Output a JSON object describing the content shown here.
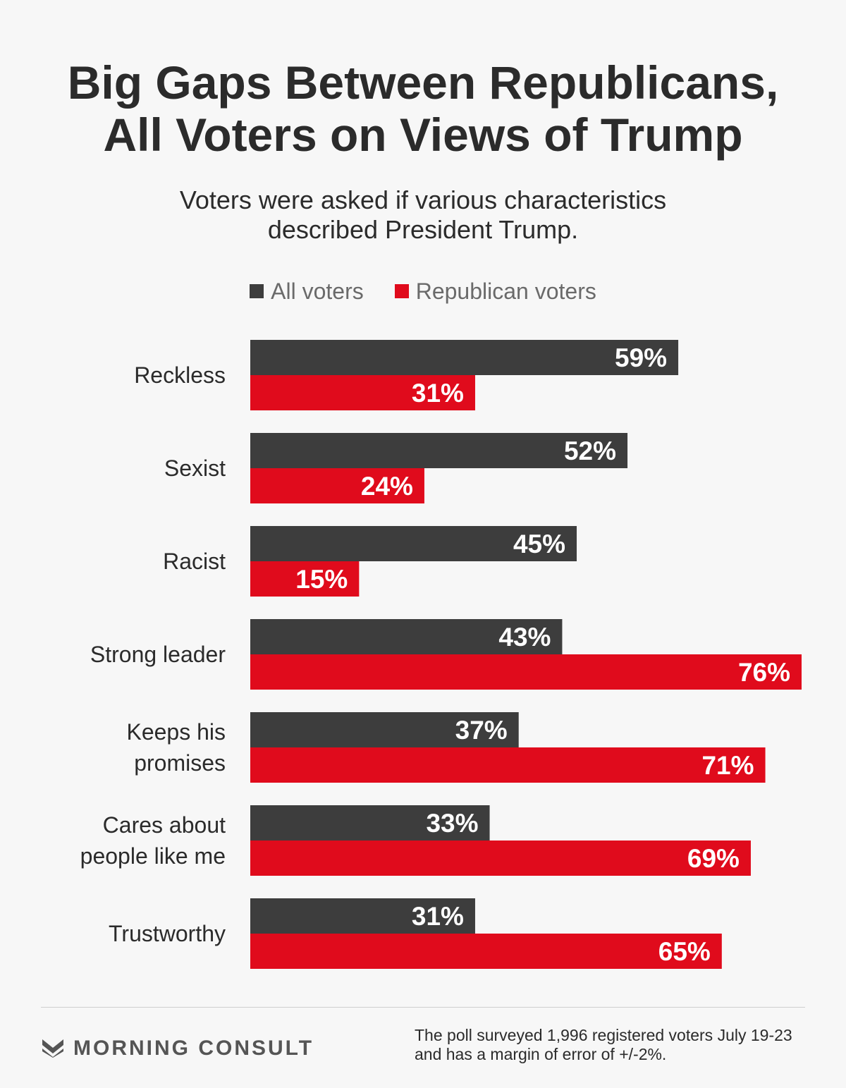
{
  "header": {
    "title_lines": [
      "Big Gaps Between Republicans,",
      "All Voters on Views of Trump"
    ],
    "subtitle_lines": [
      "Voters were asked if various characteristics",
      "described President Trump."
    ]
  },
  "legend": {
    "items": [
      {
        "label": "All voters",
        "color": "#3d3d3d"
      },
      {
        "label": "Republican voters",
        "color": "#e00b1c"
      }
    ]
  },
  "chart_data": {
    "type": "bar",
    "orientation": "horizontal",
    "categories": [
      [
        "Reckless"
      ],
      [
        "Sexist"
      ],
      [
        "Racist"
      ],
      [
        "Strong leader"
      ],
      [
        "Keeps his",
        "promises"
      ],
      [
        "Cares about",
        "people like me"
      ],
      [
        "Trustworthy"
      ]
    ],
    "series": [
      {
        "name": "All voters",
        "color": "#3d3d3d",
        "values": [
          59,
          52,
          45,
          43,
          37,
          33,
          31
        ]
      },
      {
        "name": "Republican voters",
        "color": "#e00b1c",
        "values": [
          31,
          24,
          15,
          76,
          71,
          69,
          65
        ]
      }
    ],
    "value_suffix": "%",
    "xlim": [
      0,
      76
    ],
    "grid": false,
    "legend": "top-center"
  },
  "footer": {
    "brand": "MORNING CONSULT",
    "note_lines": [
      "The poll surveyed 1,996 registered voters July 19-23",
      "and has a margin of error of +/-2%."
    ]
  }
}
